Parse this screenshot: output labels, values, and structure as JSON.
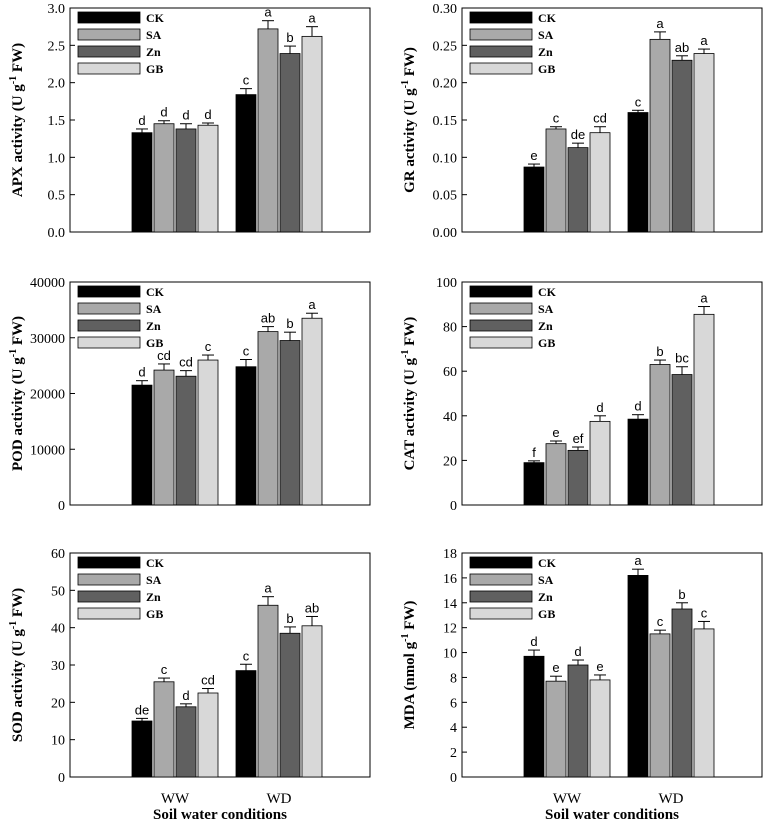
{
  "chart_data": [
    {
      "type": "bar",
      "ylabel_main": "APX activity (U g",
      "ylabel_sup": "-1",
      "ylabel_tail": " FW)",
      "ylim": [
        0,
        3.0
      ],
      "yticks": [
        "0.0",
        "0.5",
        "1.0",
        "1.5",
        "2.0",
        "2.5",
        "3.0"
      ],
      "categories": [
        "WW",
        "WD"
      ],
      "xlabel": "",
      "series": [
        {
          "name": "CK",
          "values": [
            1.33,
            1.84
          ],
          "errors": [
            0.05,
            0.08
          ],
          "letters": [
            "d",
            "c"
          ]
        },
        {
          "name": "SA",
          "values": [
            1.45,
            2.72
          ],
          "errors": [
            0.04,
            0.11
          ],
          "letters": [
            "d",
            "a"
          ]
        },
        {
          "name": "Zn",
          "values": [
            1.38,
            2.39
          ],
          "errors": [
            0.07,
            0.1
          ],
          "letters": [
            "d",
            "b"
          ]
        },
        {
          "name": "GB",
          "values": [
            1.43,
            2.62
          ],
          "errors": [
            0.03,
            0.13
          ],
          "letters": [
            "d",
            "a"
          ]
        }
      ]
    },
    {
      "type": "bar",
      "ylabel_main": "GR activity (U g",
      "ylabel_sup": "-1",
      "ylabel_tail": " FW)",
      "ylim": [
        0,
        0.3
      ],
      "yticks": [
        "0.00",
        "0.05",
        "0.10",
        "0.15",
        "0.20",
        "0.25",
        "0.30"
      ],
      "categories": [
        "WW",
        "WD"
      ],
      "xlabel": "",
      "series": [
        {
          "name": "CK",
          "values": [
            0.087,
            0.16
          ],
          "errors": [
            0.004,
            0.003
          ],
          "letters": [
            "e",
            "c"
          ]
        },
        {
          "name": "SA",
          "values": [
            0.138,
            0.258
          ],
          "errors": [
            0.003,
            0.01
          ],
          "letters": [
            "c",
            "a"
          ]
        },
        {
          "name": "Zn",
          "values": [
            0.113,
            0.23
          ],
          "errors": [
            0.006,
            0.006
          ],
          "letters": [
            "de",
            "ab"
          ]
        },
        {
          "name": "GB",
          "values": [
            0.133,
            0.239
          ],
          "errors": [
            0.008,
            0.006
          ],
          "letters": [
            "cd",
            "a"
          ]
        }
      ]
    },
    {
      "type": "bar",
      "ylabel_main": "POD activity (U g",
      "ylabel_sup": "-1",
      "ylabel_tail": " FW)",
      "ylim": [
        0,
        40000
      ],
      "yticks": [
        "0",
        "10000",
        "20000",
        "30000",
        "40000"
      ],
      "categories": [
        "WW",
        "WD"
      ],
      "xlabel": "",
      "series": [
        {
          "name": "CK",
          "values": [
            21500,
            24800
          ],
          "errors": [
            800,
            1300
          ],
          "letters": [
            "d",
            "c"
          ]
        },
        {
          "name": "SA",
          "values": [
            24200,
            31100
          ],
          "errors": [
            1100,
            900
          ],
          "letters": [
            "cd",
            "ab"
          ]
        },
        {
          "name": "Zn",
          "values": [
            23100,
            29500
          ],
          "errors": [
            1000,
            1500
          ],
          "letters": [
            "cd",
            "b"
          ]
        },
        {
          "name": "GB",
          "values": [
            26000,
            33500
          ],
          "errors": [
            900,
            900
          ],
          "letters": [
            "c",
            "a"
          ]
        }
      ]
    },
    {
      "type": "bar",
      "ylabel_main": "CAT activity (U g",
      "ylabel_sup": "-1",
      "ylabel_tail": " FW)",
      "ylim": [
        0,
        100
      ],
      "yticks": [
        "0",
        "20",
        "40",
        "60",
        "80",
        "100"
      ],
      "categories": [
        "WW",
        "WD"
      ],
      "xlabel": "",
      "series": [
        {
          "name": "CK",
          "values": [
            19,
            38.5
          ],
          "errors": [
            0.8,
            2
          ],
          "letters": [
            "f",
            "d"
          ]
        },
        {
          "name": "SA",
          "values": [
            27.5,
            63
          ],
          "errors": [
            1.2,
            2
          ],
          "letters": [
            "e",
            "b"
          ]
        },
        {
          "name": "Zn",
          "values": [
            24.5,
            58.5
          ],
          "errors": [
            1.5,
            3.5
          ],
          "letters": [
            "ef",
            "bc"
          ]
        },
        {
          "name": "GB",
          "values": [
            37.5,
            85.5
          ],
          "errors": [
            2.5,
            3.5
          ],
          "letters": [
            "d",
            "a"
          ]
        }
      ]
    },
    {
      "type": "bar",
      "ylabel_main": "SOD activity (U g",
      "ylabel_sup": "-1",
      "ylabel_tail": " FW)",
      "ylim": [
        0,
        60
      ],
      "yticks": [
        "0",
        "10",
        "20",
        "30",
        "40",
        "50",
        "60"
      ],
      "categories": [
        "WW",
        "WD"
      ],
      "xlabel": "Soil water conditions",
      "series": [
        {
          "name": "CK",
          "values": [
            15,
            28.5
          ],
          "errors": [
            0.7,
            1.7
          ],
          "letters": [
            "de",
            "c"
          ]
        },
        {
          "name": "SA",
          "values": [
            25.5,
            46
          ],
          "errors": [
            1,
            2.3
          ],
          "letters": [
            "c",
            "a"
          ]
        },
        {
          "name": "Zn",
          "values": [
            18.8,
            38.5
          ],
          "errors": [
            0.8,
            1.7
          ],
          "letters": [
            "d",
            "b"
          ]
        },
        {
          "name": "GB",
          "values": [
            22.5,
            40.5
          ],
          "errors": [
            1.2,
            2.5
          ],
          "letters": [
            "cd",
            "ab"
          ]
        }
      ]
    },
    {
      "type": "bar",
      "ylabel_main": "MDA (nmol g",
      "ylabel_sup": "-1",
      "ylabel_tail": " FW)",
      "ylim": [
        0,
        18
      ],
      "yticks": [
        "0",
        "2",
        "4",
        "6",
        "8",
        "10",
        "12",
        "14",
        "16",
        "18"
      ],
      "categories": [
        "WW",
        "WD"
      ],
      "xlabel": "Soil water conditions",
      "series": [
        {
          "name": "CK",
          "values": [
            9.7,
            16.2
          ],
          "errors": [
            0.5,
            0.5
          ],
          "letters": [
            "d",
            "a"
          ]
        },
        {
          "name": "SA",
          "values": [
            7.7,
            11.5
          ],
          "errors": [
            0.4,
            0.3
          ],
          "letters": [
            "e",
            "c"
          ]
        },
        {
          "name": "Zn",
          "values": [
            9.0,
            13.5
          ],
          "errors": [
            0.4,
            0.5
          ],
          "letters": [
            "d",
            "b"
          ]
        },
        {
          "name": "GB",
          "values": [
            7.8,
            11.9
          ],
          "errors": [
            0.4,
            0.6
          ],
          "letters": [
            "e",
            "c"
          ]
        }
      ]
    }
  ],
  "legend": [
    "CK",
    "SA",
    "Zn",
    "GB"
  ],
  "colors": {
    "CK": "#000000",
    "SA": "#a9a9a9",
    "Zn": "#606060",
    "GB": "#d8d8d8",
    "axis": "#000000",
    "bar_edge": "#000000"
  }
}
